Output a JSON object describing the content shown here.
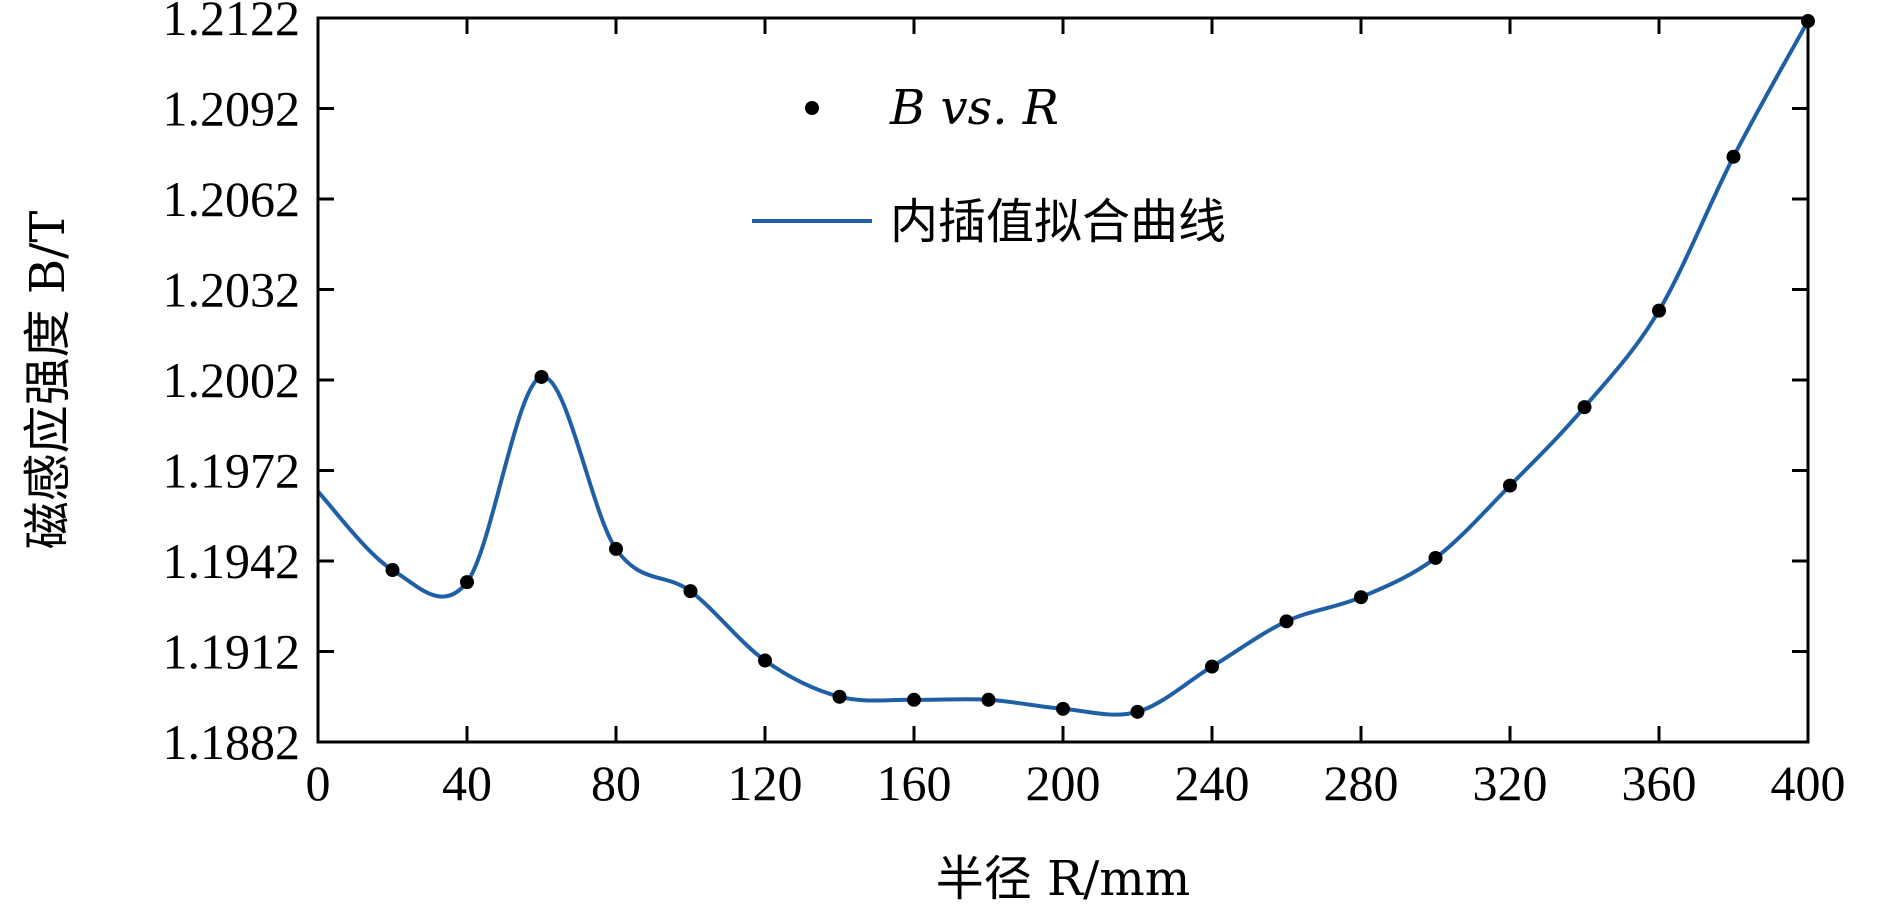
{
  "chart_data": {
    "type": "line",
    "xlabel": "半径 R/mm",
    "ylabel": "磁感应强度 B/T",
    "xlim": [
      0,
      400
    ],
    "ylim": [
      1.1882,
      1.2122
    ],
    "xticks": [
      "0",
      "40",
      "80",
      "120",
      "160",
      "200",
      "240",
      "280",
      "320",
      "360",
      "400"
    ],
    "yticks": [
      "1.1882",
      "1.1912",
      "1.1942",
      "1.1972",
      "1.2002",
      "1.2032",
      "1.2062",
      "1.2092",
      "1.2122"
    ],
    "grid": false,
    "legend_position": "top-left",
    "series": [
      {
        "name": "B vs. R",
        "kind": "scatter",
        "color": "#000000",
        "x": [
          20,
          40,
          60,
          80,
          100,
          120,
          140,
          160,
          180,
          200,
          220,
          240,
          260,
          280,
          300,
          320,
          340,
          360,
          380,
          400
        ],
        "y": [
          1.1939,
          1.1935,
          1.2003,
          1.1946,
          1.1932,
          1.1909,
          1.1897,
          1.1896,
          1.1896,
          1.1893,
          1.1892,
          1.1907,
          1.1922,
          1.193,
          1.1943,
          1.1967,
          1.1993,
          1.2025,
          1.2076,
          1.2121
        ]
      },
      {
        "name": "内插值拟合曲线",
        "kind": "line",
        "color": "#1f5fa6",
        "x": [
          0,
          20,
          40,
          60,
          80,
          100,
          120,
          140,
          160,
          180,
          200,
          220,
          240,
          260,
          280,
          300,
          320,
          340,
          360,
          380,
          400
        ],
        "y": [
          1.1965,
          1.1939,
          1.1935,
          1.2003,
          1.1946,
          1.1932,
          1.1909,
          1.1897,
          1.1896,
          1.1896,
          1.1893,
          1.1892,
          1.1907,
          1.1922,
          1.193,
          1.1943,
          1.1967,
          1.1993,
          1.2025,
          1.2076,
          1.2121
        ]
      }
    ]
  }
}
